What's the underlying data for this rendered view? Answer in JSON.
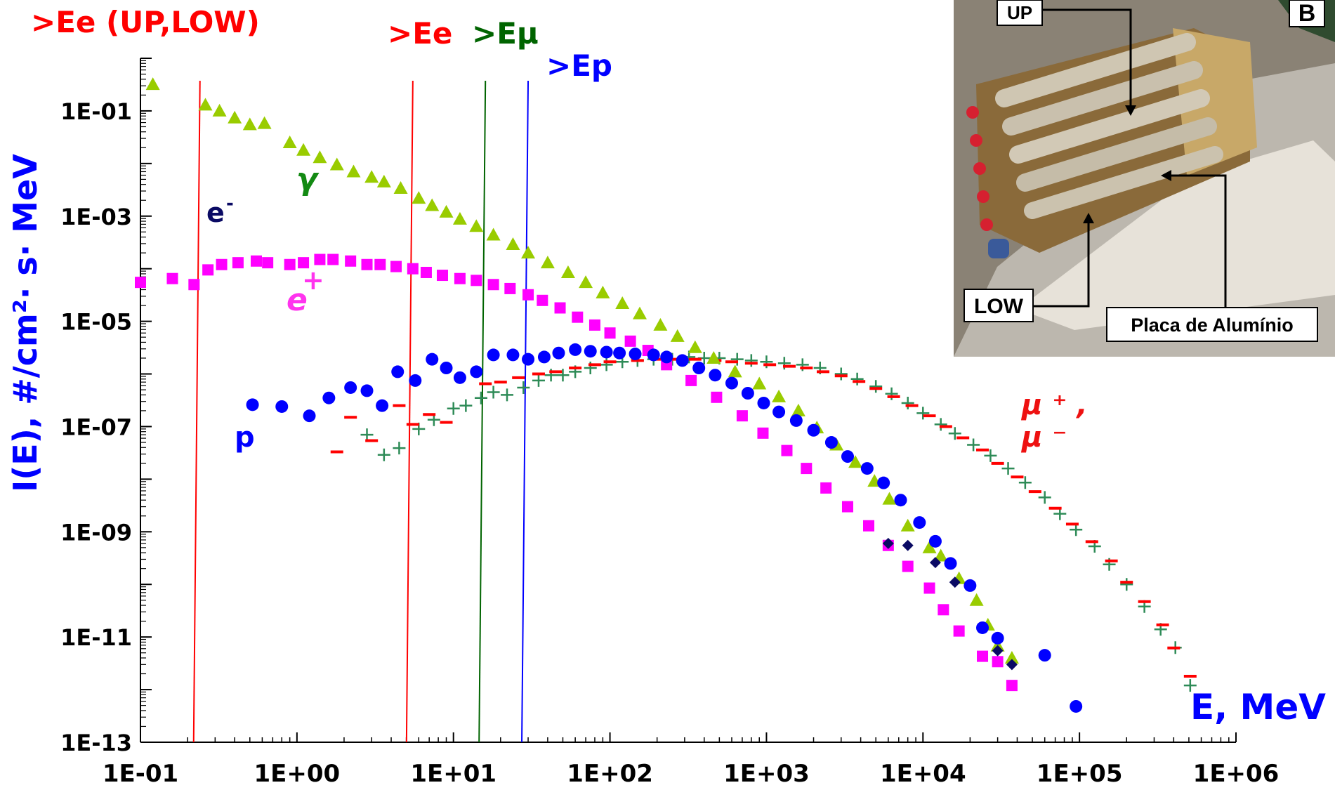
{
  "chart_data": {
    "type": "scatter",
    "log_x": true,
    "log_y": true,
    "xlim": [
      0.1,
      1000000
    ],
    "ylim": [
      1e-13,
      1
    ],
    "x_tick_labels": [
      "1E-01",
      "1E+00",
      "1E+01",
      "1E+02",
      "1E+03",
      "1E+04",
      "1E+05",
      "1E+06"
    ],
    "y_tick_labels": [
      "1E-01",
      "1E-03",
      "1E-05",
      "1E-07",
      "1E-09",
      "1E-11",
      "1E-13"
    ],
    "xlabel": "E, MeV",
    "ylabel": "I(E),  #/cm²· s· MeV",
    "grid": false,
    "thresholds": [
      {
        "label": ">Ee (UP,LOW)",
        "x": 0.24,
        "color": "#ff0000"
      },
      {
        "label": ">Ee",
        "x": 5.5,
        "color": "#ff0000"
      },
      {
        "label": ">Eμ",
        "x": 16,
        "color": "#006400"
      },
      {
        "label": ">Ep",
        "x": 30,
        "color": "#0000ff"
      }
    ],
    "series": [
      {
        "name": "γ",
        "color": "#99cc00",
        "marker": "triangle",
        "points": [
          [
            0.12,
            0.32
          ],
          [
            0.26,
            0.13
          ],
          [
            0.32,
            0.1
          ],
          [
            0.4,
            0.074
          ],
          [
            0.5,
            0.055
          ],
          [
            0.62,
            0.058
          ],
          [
            0.9,
            0.025
          ],
          [
            1.1,
            0.018
          ],
          [
            1.4,
            0.013
          ],
          [
            1.8,
            0.0095
          ],
          [
            2.3,
            0.007
          ],
          [
            3,
            0.0055
          ],
          [
            3.6,
            0.0045
          ],
          [
            4.6,
            0.0034
          ],
          [
            6,
            0.0022
          ],
          [
            7.3,
            0.0016
          ],
          [
            9,
            0.0012
          ],
          [
            11,
            0.00088
          ],
          [
            14,
            0.00064
          ],
          [
            18,
            0.00044
          ],
          [
            24,
            0.00029
          ],
          [
            30,
            0.0002
          ],
          [
            40,
            0.00013
          ],
          [
            54,
            8.5e-05
          ],
          [
            70,
            5.5e-05
          ],
          [
            90,
            3.5e-05
          ],
          [
            120,
            2.2e-05
          ],
          [
            155,
            1.4e-05
          ],
          [
            210,
            8.5e-06
          ],
          [
            270,
            5.2e-06
          ],
          [
            350,
            3.2e-06
          ],
          [
            460,
            2e-06
          ],
          [
            630,
            1.1e-06
          ],
          [
            900,
            6.5e-07
          ],
          [
            1200,
            3.7e-07
          ],
          [
            1600,
            2e-07
          ],
          [
            2100,
            9.5e-08
          ],
          [
            2800,
            4.5e-08
          ],
          [
            3700,
            2.1e-08
          ],
          [
            4900,
            9.2e-09
          ],
          [
            6100,
            4.2e-09
          ],
          [
            8000,
            1.3e-09
          ],
          [
            11000,
            5e-10
          ],
          [
            13000,
            3.5e-10
          ],
          [
            17000,
            1.3e-10
          ],
          [
            22000,
            5e-11
          ],
          [
            26000,
            1.7e-11
          ],
          [
            30000,
            6.8e-12
          ],
          [
            37000,
            4e-12
          ]
        ]
      },
      {
        "name": "e-",
        "color": "#0a0a64",
        "marker": "diamond",
        "points": [
          [
            6000,
            6e-10
          ],
          [
            8000,
            5.5e-10
          ],
          [
            12000,
            2.6e-10
          ],
          [
            16000,
            1.1e-10
          ],
          [
            24000,
            1.5e-11
          ],
          [
            30000,
            5.5e-12
          ],
          [
            37000,
            3e-12
          ]
        ]
      },
      {
        "name": "e+",
        "color": "#ff00ff",
        "marker": "square",
        "points": [
          [
            0.1,
            5.5e-05
          ],
          [
            0.16,
            6.5e-05
          ],
          [
            0.22,
            5e-05
          ],
          [
            0.27,
            9.5e-05
          ],
          [
            0.33,
            0.00012
          ],
          [
            0.42,
            0.00013
          ],
          [
            0.55,
            0.00014
          ],
          [
            0.65,
            0.00013
          ],
          [
            0.9,
            0.00012
          ],
          [
            1.1,
            0.00013
          ],
          [
            1.4,
            0.00015
          ],
          [
            1.7,
            0.00015
          ],
          [
            2.2,
            0.00014
          ],
          [
            2.8,
            0.00012
          ],
          [
            3.4,
            0.00012
          ],
          [
            4.3,
            0.00011
          ],
          [
            5.5,
            0.0001
          ],
          [
            6.7,
            8.5e-05
          ],
          [
            8.5,
            7.5e-05
          ],
          [
            11,
            6.5e-05
          ],
          [
            14,
            6e-05
          ],
          [
            18,
            5e-05
          ],
          [
            23,
            4.2e-05
          ],
          [
            30,
            3.2e-05
          ],
          [
            37,
            2.5e-05
          ],
          [
            48,
            1.8e-05
          ],
          [
            62,
            1.2e-05
          ],
          [
            80,
            8.5e-06
          ],
          [
            100,
            6e-06
          ],
          [
            135,
            4.2e-06
          ],
          [
            175,
            2.8e-06
          ],
          [
            230,
            1.5e-06
          ],
          [
            330,
            7.5e-07
          ],
          [
            480,
            3.6e-07
          ],
          [
            700,
            1.6e-07
          ],
          [
            950,
            7.5e-08
          ],
          [
            1350,
            3.5e-08
          ],
          [
            1800,
            1.6e-08
          ],
          [
            2400,
            6.8e-09
          ],
          [
            3300,
            3e-09
          ],
          [
            4500,
            1.3e-09
          ],
          [
            6000,
            5.5e-10
          ],
          [
            8000,
            2.2e-10
          ],
          [
            11000,
            8.5e-11
          ],
          [
            13500,
            3.3e-11
          ],
          [
            17000,
            1.3e-11
          ],
          [
            24000,
            4.3e-12
          ],
          [
            30000,
            3.4e-12
          ],
          [
            37000,
            1.2e-12
          ]
        ]
      },
      {
        "name": "μ+, μ-",
        "color": "#ff0000",
        "marker": "dash",
        "points": [
          [
            2.2,
            1.5e-07
          ],
          [
            1.8,
            3.3e-08
          ],
          [
            3,
            5.4e-08
          ],
          [
            4.5,
            2.5e-07
          ],
          [
            5.5,
            1.1e-07
          ],
          [
            7,
            1.7e-07
          ],
          [
            9,
            1.2e-07
          ],
          [
            16,
            6.5e-07
          ],
          [
            20,
            7e-07
          ],
          [
            26,
            8.5e-07
          ],
          [
            35,
            1e-06
          ],
          [
            45,
            1.1e-06
          ],
          [
            60,
            1.3e-06
          ],
          [
            80,
            1.5e-06
          ],
          [
            100,
            1.7e-06
          ],
          [
            150,
            1.8e-06
          ],
          [
            200,
            1.9e-06
          ],
          [
            260,
            1.9e-06
          ],
          [
            350,
            1.9e-06
          ],
          [
            470,
            1.8e-06
          ],
          [
            600,
            1.7e-06
          ],
          [
            800,
            1.6e-06
          ],
          [
            1050,
            1.5e-06
          ],
          [
            1400,
            1.4e-06
          ],
          [
            1800,
            1.3e-06
          ],
          [
            2300,
            1.1e-06
          ],
          [
            3000,
            9.2e-07
          ],
          [
            3900,
            7.2e-07
          ],
          [
            5000,
            5.3e-07
          ],
          [
            6500,
            3.7e-07
          ],
          [
            8500,
            2.5e-07
          ],
          [
            11000,
            1.6e-07
          ],
          [
            14000,
            1e-07
          ],
          [
            18000,
            6.1e-08
          ],
          [
            24000,
            3.6e-08
          ],
          [
            30000,
            2e-08
          ],
          [
            40000,
            1.1e-08
          ],
          [
            52000,
            5.8e-09
          ],
          [
            70000,
            2.8e-09
          ],
          [
            90000,
            1.4e-09
          ],
          [
            120000,
            6.5e-10
          ],
          [
            160000,
            2.8e-10
          ],
          [
            200000,
            1.1e-10
          ],
          [
            260000,
            4.7e-11
          ],
          [
            340000,
            1.7e-11
          ],
          [
            400000,
            6.2e-12
          ],
          [
            510000,
            1.8e-12
          ]
        ]
      },
      {
        "name": "μ (+)",
        "color": "#2e8b57",
        "marker": "plus",
        "points": [
          [
            2.8,
            7e-08
          ],
          [
            3.6,
            2.9e-08
          ],
          [
            4.5,
            3.9e-08
          ],
          [
            6,
            9e-08
          ],
          [
            7.5,
            1.35e-07
          ],
          [
            10,
            2.2e-07
          ],
          [
            12,
            2.5e-07
          ],
          [
            15,
            3.5e-07
          ],
          [
            18,
            4.5e-07
          ],
          [
            22,
            4e-07
          ],
          [
            28,
            5.5e-07
          ],
          [
            35,
            7.5e-07
          ],
          [
            42,
            9.5e-07
          ],
          [
            50,
            9.5e-07
          ],
          [
            60,
            1.1e-06
          ],
          [
            75,
            1.3e-06
          ],
          [
            95,
            1.5e-06
          ],
          [
            120,
            1.7e-06
          ],
          [
            150,
            1.8e-06
          ],
          [
            190,
            1.9e-06
          ],
          [
            250,
            1.9e-06
          ],
          [
            320,
            2.1e-06
          ],
          [
            400,
            2e-06
          ],
          [
            500,
            2e-06
          ],
          [
            650,
            1.9e-06
          ],
          [
            800,
            1.8e-06
          ],
          [
            1000,
            1.7e-06
          ],
          [
            1300,
            1.6e-06
          ],
          [
            1700,
            1.5e-06
          ],
          [
            2200,
            1.3e-06
          ],
          [
            3000,
            1e-06
          ],
          [
            3800,
            8e-07
          ],
          [
            5000,
            5.8e-07
          ],
          [
            6300,
            4.2e-07
          ],
          [
            8000,
            2.8e-07
          ],
          [
            10000,
            1.8e-07
          ],
          [
            13000,
            1.1e-07
          ],
          [
            16000,
            7.4e-08
          ],
          [
            21000,
            4.5e-08
          ],
          [
            27000,
            2.8e-08
          ],
          [
            35000,
            1.6e-08
          ],
          [
            45000,
            8.6e-09
          ],
          [
            60000,
            4.5e-09
          ],
          [
            75000,
            2.2e-09
          ],
          [
            95000,
            1.1e-09
          ],
          [
            125000,
            5.3e-10
          ],
          [
            155000,
            2.4e-10
          ],
          [
            200000,
            1e-10
          ],
          [
            260000,
            3.8e-11
          ],
          [
            330000,
            1.4e-11
          ],
          [
            410000,
            6.3e-12
          ],
          [
            510000,
            1.2e-12
          ]
        ]
      },
      {
        "name": "p",
        "color": "#0000ff",
        "marker": "circle",
        "points": [
          [
            0.52,
            2.6e-07
          ],
          [
            0.8,
            2.4e-07
          ],
          [
            1.2,
            1.6e-07
          ],
          [
            1.6,
            3.5e-07
          ],
          [
            2.2,
            5.5e-07
          ],
          [
            2.8,
            4.8e-07
          ],
          [
            3.5,
            2.5e-07
          ],
          [
            4.4,
            1.1e-06
          ],
          [
            5.7,
            7.5e-07
          ],
          [
            7.3,
            1.9e-06
          ],
          [
            9,
            1.3e-06
          ],
          [
            11,
            8.5e-07
          ],
          [
            14,
            1.1e-06
          ],
          [
            18,
            2.3e-06
          ],
          [
            24,
            2.3e-06
          ],
          [
            30,
            1.9e-06
          ],
          [
            38,
            2.1e-06
          ],
          [
            47,
            2.5e-06
          ],
          [
            60,
            2.9e-06
          ],
          [
            75,
            2.7e-06
          ],
          [
            95,
            2.6e-06
          ],
          [
            115,
            2.5e-06
          ],
          [
            145,
            2.4e-06
          ],
          [
            190,
            2.3e-06
          ],
          [
            230,
            2.1e-06
          ],
          [
            290,
            1.8e-06
          ],
          [
            370,
            1.3e-06
          ],
          [
            470,
            9.5e-07
          ],
          [
            600,
            6.7e-07
          ],
          [
            760,
            4.3e-07
          ],
          [
            960,
            2.8e-07
          ],
          [
            1200,
            1.9e-07
          ],
          [
            1550,
            1.3e-07
          ],
          [
            2000,
            8.5e-08
          ],
          [
            2600,
            5e-08
          ],
          [
            3300,
            2.7e-08
          ],
          [
            4400,
            1.6e-08
          ],
          [
            5600,
            8.5e-09
          ],
          [
            7200,
            4e-09
          ],
          [
            9500,
            1.5e-09
          ],
          [
            12000,
            6.6e-10
          ],
          [
            15000,
            2.5e-10
          ],
          [
            20000,
            9.5e-11
          ],
          [
            24000,
            1.5e-11
          ],
          [
            30000,
            9.5e-12
          ],
          [
            60000,
            4.5e-12
          ],
          [
            95000,
            4.8e-13
          ]
        ]
      }
    ],
    "annotations": {
      "gamma": "γ",
      "e_minus": "e",
      "e_minus_sup": "-",
      "e_plus": "e",
      "e_plus_sup": "+",
      "p": "p",
      "mu_plus_line": "μ ⁺ ,",
      "mu_minus_line": "μ ⁻"
    }
  },
  "inset": {
    "corner_letter": "B",
    "labels": {
      "up": "UP",
      "low": "LOW",
      "plate": "Placa de Alumínio"
    },
    "colors": {
      "background": "#8a8275",
      "module_frame": "#c8a868",
      "tubes": "#c9c0ad",
      "connectors": "#d62030"
    }
  }
}
